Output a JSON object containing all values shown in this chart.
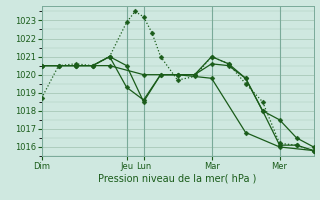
{
  "bg_color": "#cfe8e0",
  "grid_color": "#a8c8b8",
  "line_color": "#1a5c1a",
  "ylim": [
    1015.5,
    1023.8
  ],
  "yticks": [
    1016,
    1017,
    1018,
    1019,
    1020,
    1021,
    1022,
    1023
  ],
  "xlabel": "Pression niveau de la mer( hPa )",
  "day_labels": [
    "Dim",
    "Jeu",
    "Lun",
    "Mar",
    "Mer"
  ],
  "day_positions": [
    0,
    60,
    72,
    120,
    168
  ],
  "total_points": 192,
  "series": [
    {
      "x": [
        0,
        12,
        24,
        36,
        48,
        60,
        66,
        72,
        78,
        84,
        96,
        108,
        120,
        132,
        144,
        156,
        168,
        180,
        192
      ],
      "y": [
        1018.7,
        1020.5,
        1020.6,
        1020.5,
        1021.0,
        1022.9,
        1023.5,
        1023.2,
        1022.3,
        1021.0,
        1019.7,
        1019.9,
        1021.0,
        1020.6,
        1019.5,
        1018.5,
        1016.2,
        1016.1,
        1015.8
      ],
      "style": "dotted",
      "marker": "D",
      "markersize": 2.5
    },
    {
      "x": [
        0,
        12,
        24,
        36,
        48,
        60,
        72,
        84,
        96,
        108,
        120,
        132,
        144,
        156,
        168,
        180,
        192
      ],
      "y": [
        1020.5,
        1020.5,
        1020.5,
        1020.5,
        1021.0,
        1020.5,
        1018.5,
        1020.0,
        1020.0,
        1020.0,
        1020.6,
        1020.5,
        1019.8,
        1018.0,
        1017.5,
        1016.5,
        1016.0
      ],
      "style": "solid",
      "marker": "D",
      "markersize": 2.5
    },
    {
      "x": [
        0,
        12,
        24,
        36,
        48,
        60,
        72,
        84,
        96,
        108,
        120,
        132,
        144,
        156,
        168,
        180,
        192
      ],
      "y": [
        1020.5,
        1020.5,
        1020.5,
        1020.5,
        1021.0,
        1019.3,
        1018.6,
        1020.0,
        1020.0,
        1020.0,
        1021.0,
        1020.6,
        1019.8,
        1018.0,
        1016.1,
        1016.1,
        1015.8
      ],
      "style": "solid",
      "marker": "D",
      "markersize": 2.5
    },
    {
      "x": [
        0,
        24,
        48,
        72,
        96,
        120,
        144,
        168,
        192
      ],
      "y": [
        1020.5,
        1020.5,
        1020.5,
        1020.0,
        1020.0,
        1019.8,
        1016.8,
        1016.0,
        1015.8
      ],
      "style": "solid",
      "marker": "D",
      "markersize": 2.5
    }
  ]
}
